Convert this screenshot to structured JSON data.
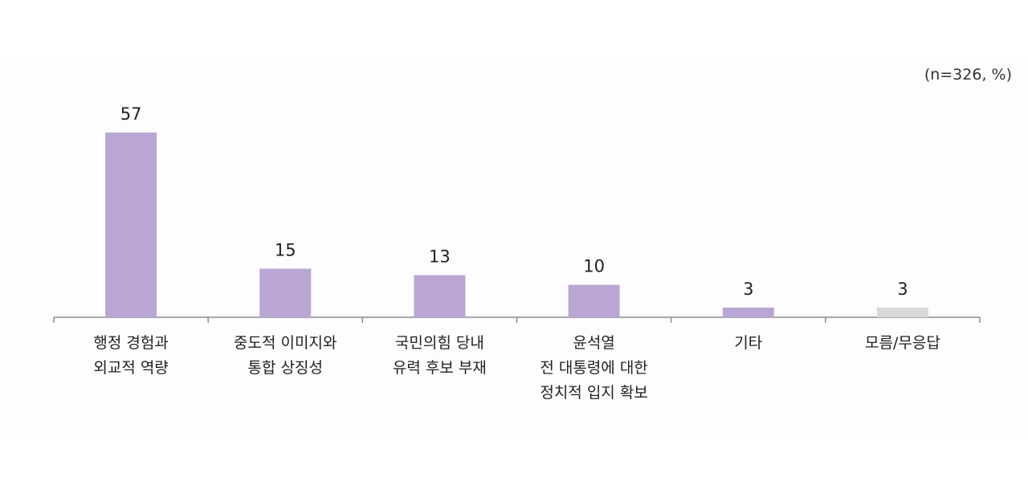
{
  "chart_data": {
    "type": "bar",
    "note": "(n=326, %)",
    "categories": [
      [
        "행정 경험과",
        "외교적 역량"
      ],
      [
        "중도적 이미지와",
        "통합 상징성"
      ],
      [
        "국민의힘 당내",
        "유력 후보 부재"
      ],
      [
        "윤석열",
        "전 대통령에 대한",
        "정치적 입지 확보"
      ],
      [
        "기타"
      ],
      [
        "모름/무응답"
      ]
    ],
    "values": [
      57,
      15,
      13,
      10,
      3,
      3
    ],
    "value_labels": [
      "57",
      "15",
      "13",
      "10",
      "3",
      "3"
    ],
    "bar_colors": [
      "#b9a6d4",
      "#b9a6d4",
      "#b9a6d4",
      "#b9a6d4",
      "#b9a6d4",
      "#d9d9d9"
    ],
    "ylim": [
      0,
      57
    ],
    "grid": false,
    "legend": "none"
  }
}
